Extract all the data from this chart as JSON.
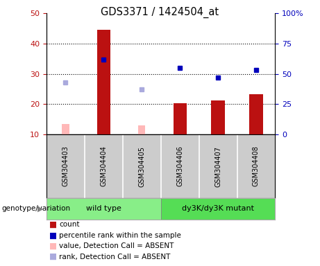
{
  "title": "GDS3371 / 1424504_at",
  "samples": [
    "GSM304403",
    "GSM304404",
    "GSM304405",
    "GSM304406",
    "GSM304407",
    "GSM304408"
  ],
  "count_values": [
    null,
    44.5,
    null,
    20.3,
    21.3,
    23.3
  ],
  "count_absent_values": [
    13.5,
    null,
    13.0,
    null,
    null,
    null
  ],
  "percentile_values": [
    null,
    62.0,
    null,
    55.0,
    47.0,
    53.0
  ],
  "rank_absent_values": [
    43.0,
    null,
    37.0,
    null,
    null,
    null
  ],
  "left_ylim": [
    10,
    50
  ],
  "right_ylim": [
    0,
    100
  ],
  "left_yticks": [
    10,
    20,
    30,
    40,
    50
  ],
  "right_yticks": [
    0,
    25,
    50,
    75,
    100
  ],
  "right_yticklabels": [
    "0",
    "25",
    "50",
    "75",
    "100%"
  ],
  "bar_color_red": "#BB1111",
  "bar_color_pink": "#FFB8B8",
  "dot_color_blue": "#0000BB",
  "dot_color_lightblue": "#AAAADD",
  "group1_label": "wild type",
  "group2_label": "dy3K/dy3K mutant",
  "group_color1": "#88EE88",
  "group_color2": "#55DD55",
  "xlabel_area_color": "#CCCCCC",
  "bar_width": 0.35,
  "legend_items": [
    {
      "label": "count",
      "color": "#BB1111"
    },
    {
      "label": "percentile rank within the sample",
      "color": "#0000BB"
    },
    {
      "label": "value, Detection Call = ABSENT",
      "color": "#FFB8B8"
    },
    {
      "label": "rank, Detection Call = ABSENT",
      "color": "#AAAADD"
    }
  ]
}
